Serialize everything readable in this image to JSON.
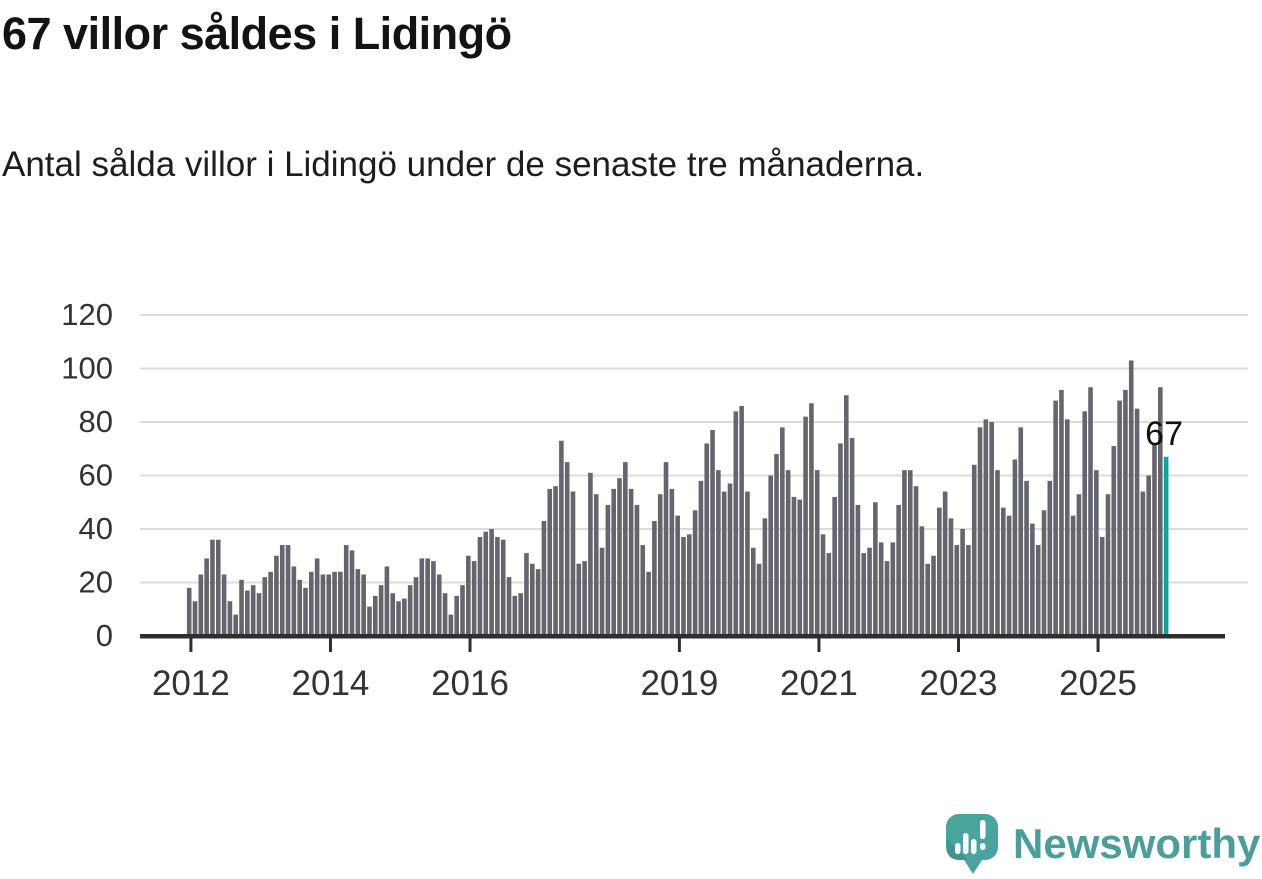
{
  "title": "67 villor såldes i Lidingö",
  "subtitle": "Antal sålda villor i Lidingö under de senaste tre månaderna.",
  "branding": {
    "name": "Newsworthy"
  },
  "colors": {
    "bar": "#65656d",
    "highlight": "#0fa0a1",
    "grid": "#dcdcdc",
    "axis": "#2e2e2e",
    "tick_label": "#333333",
    "annotation": "#111111",
    "logo": "#4aa49e",
    "logo_text": "#4d9e9a"
  },
  "chart_data": {
    "type": "bar",
    "title": "67 villor såldes i Lidingö",
    "subtitle": "Antal sålda villor i Lidingö under de senaste tre månaderna.",
    "xlabel": "",
    "ylabel": "",
    "ylim": [
      0,
      120
    ],
    "grid": true,
    "x_start": "2011-12",
    "x_interval": "monthly",
    "y_ticks": [
      0,
      20,
      40,
      60,
      80,
      100,
      120
    ],
    "x_ticks": [
      {
        "label": "2012",
        "month_index": 1
      },
      {
        "label": "2014",
        "month_index": 25
      },
      {
        "label": "2016",
        "month_index": 49
      },
      {
        "label": "2019",
        "month_index": 85
      },
      {
        "label": "2021",
        "month_index": 109
      },
      {
        "label": "2023",
        "month_index": 133
      },
      {
        "label": "2025",
        "month_index": 157
      }
    ],
    "values": [
      18,
      13,
      23,
      29,
      36,
      36,
      23,
      13,
      8,
      21,
      17,
      19,
      16,
      22,
      24,
      30,
      34,
      34,
      26,
      21,
      18,
      24,
      29,
      23,
      23,
      24,
      24,
      34,
      32,
      25,
      23,
      11,
      15,
      19,
      26,
      16,
      13,
      14,
      19,
      22,
      29,
      29,
      28,
      23,
      16,
      8,
      15,
      19,
      30,
      28,
      37,
      39,
      40,
      37,
      36,
      22,
      15,
      16,
      31,
      27,
      25,
      43,
      55,
      56,
      73,
      65,
      54,
      27,
      28,
      61,
      53,
      33,
      49,
      55,
      59,
      65,
      55,
      49,
      34,
      24,
      43,
      53,
      65,
      55,
      45,
      37,
      38,
      47,
      58,
      72,
      77,
      62,
      54,
      57,
      84,
      86,
      54,
      33,
      27,
      44,
      60,
      68,
      78,
      62,
      52,
      51,
      82,
      87,
      62,
      38,
      31,
      52,
      72,
      90,
      74,
      49,
      31,
      33,
      50,
      35,
      28,
      35,
      49,
      62,
      62,
      56,
      41,
      27,
      30,
      48,
      54,
      44,
      34,
      40,
      34,
      64,
      78,
      81,
      80,
      62,
      48,
      45,
      66,
      78,
      58,
      42,
      34,
      47,
      58,
      88,
      92,
      81,
      45,
      53,
      84,
      93,
      62,
      37,
      53,
      71,
      88,
      92,
      103,
      85,
      54,
      60,
      72,
      93,
      67
    ],
    "highlight_last_bar": true,
    "annotation_label": "67",
    "annotation_value": 67,
    "legend": null
  }
}
